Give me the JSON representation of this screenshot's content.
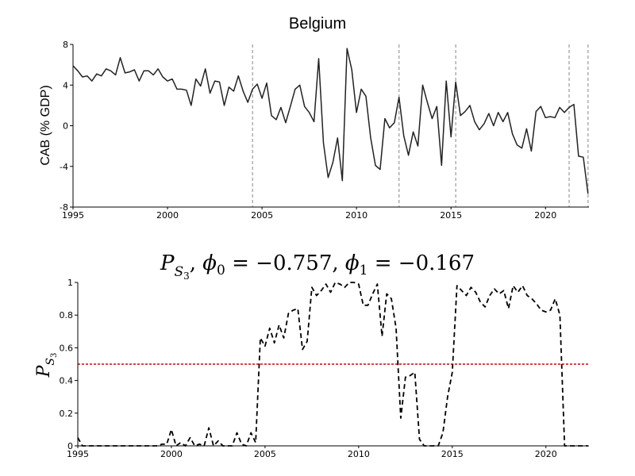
{
  "chart_data": [
    {
      "type": "line",
      "title": "Belgium",
      "ylabel": "CAB (% GDP)",
      "xlim": [
        1995,
        2022.3
      ],
      "ylim": [
        -8,
        8
      ],
      "xticks": [
        1995,
        2000,
        2005,
        2010,
        2015,
        2020
      ],
      "yticks": [
        -8,
        -4,
        0,
        4,
        8
      ],
      "vlines": [
        2004.5,
        2012.25,
        2015.25,
        2021.25,
        2022.25
      ],
      "series": [
        {
          "x": [
            1995.0,
            1995.25,
            1995.5,
            1995.75,
            1996.0,
            1996.25,
            1996.5,
            1996.75,
            1997.0,
            1997.25,
            1997.5,
            1997.75,
            1998.0,
            1998.25,
            1998.5,
            1998.75,
            1999.0,
            1999.25,
            1999.5,
            1999.75,
            2000.0,
            2000.25,
            2000.5,
            2000.75,
            2001.0,
            2001.25,
            2001.5,
            2001.75,
            2002.0,
            2002.25,
            2002.5,
            2002.75,
            2003.0,
            2003.25,
            2003.5,
            2003.75,
            2004.0,
            2004.25,
            2004.5,
            2004.75,
            2005.0,
            2005.25,
            2005.5,
            2005.75,
            2006.0,
            2006.25,
            2006.5,
            2006.75,
            2007.0,
            2007.25,
            2007.5,
            2007.75,
            2008.0,
            2008.25,
            2008.5,
            2008.75,
            2009.0,
            2009.25,
            2009.5,
            2009.75,
            2010.0,
            2010.25,
            2010.5,
            2010.75,
            2011.0,
            2011.25,
            2011.5,
            2011.75,
            2012.0,
            2012.25,
            2012.5,
            2012.75,
            2013.0,
            2013.25,
            2013.5,
            2013.75,
            2014.0,
            2014.25,
            2014.5,
            2014.75,
            2015.0,
            2015.25,
            2015.5,
            2015.75,
            2016.0,
            2016.25,
            2016.5,
            2016.75,
            2017.0,
            2017.25,
            2017.5,
            2017.75,
            2018.0,
            2018.25,
            2018.5,
            2018.75,
            2019.0,
            2019.25,
            2019.5,
            2019.75,
            2020.0,
            2020.25,
            2020.5,
            2020.75,
            2021.0,
            2021.25,
            2021.5,
            2021.75,
            2022.0,
            2022.25
          ],
          "y": [
            5.9,
            5.4,
            4.8,
            4.9,
            4.4,
            5.1,
            4.9,
            5.6,
            5.4,
            5.0,
            6.7,
            5.2,
            5.3,
            5.5,
            4.4,
            5.4,
            5.4,
            5.0,
            5.6,
            4.8,
            4.4,
            4.6,
            3.6,
            3.6,
            3.5,
            2.0,
            4.6,
            3.9,
            5.6,
            3.2,
            4.4,
            4.3,
            2.0,
            3.8,
            3.4,
            4.9,
            3.4,
            2.3,
            3.6,
            4.1,
            2.7,
            4.2,
            1.0,
            0.6,
            1.8,
            0.3,
            1.9,
            3.6,
            4.0,
            1.9,
            1.3,
            0.4,
            6.6,
            -1.7,
            -5.1,
            -3.6,
            -1.2,
            -5.4,
            7.6,
            5.5,
            1.3,
            3.6,
            2.9,
            -1.2,
            -3.9,
            -4.3,
            0.7,
            -0.2,
            0.3,
            2.8,
            -1.0,
            -2.9,
            -0.6,
            -2.0,
            4.0,
            2.3,
            0.7,
            1.9,
            -3.9,
            4.4,
            -1.1,
            4.3,
            1.0,
            1.4,
            2.0,
            0.4,
            -0.4,
            0.2,
            1.2,
            0.0,
            1.3,
            0.4,
            1.3,
            -0.8,
            -1.9,
            -2.2,
            -0.3,
            -2.5,
            1.4,
            1.9,
            0.8,
            0.9,
            0.8,
            1.8,
            1.3,
            1.8,
            2.1,
            -3.0,
            -3.1,
            -6.7
          ]
        }
      ]
    },
    {
      "type": "line",
      "title": "P_{S_3}, φ_0 = −0.757, φ_1 = −0.167",
      "ylabel": "P_{S_3}",
      "xlim": [
        1995,
        2022.3
      ],
      "ylim": [
        0,
        1
      ],
      "xticks": [
        1995,
        2000,
        2005,
        2010,
        2015,
        2020
      ],
      "yticks": [
        0,
        0.2,
        0.4,
        0.6,
        0.8,
        1
      ],
      "threshold": {
        "y": 0.5,
        "color": "#e00000"
      },
      "series": [
        {
          "style": "dashed",
          "x": [
            1995.0,
            1995.25,
            1995.5,
            1995.75,
            1996.0,
            1996.25,
            1996.5,
            1996.75,
            1997.0,
            1997.25,
            1997.5,
            1997.75,
            1998.0,
            1998.25,
            1998.5,
            1998.75,
            1999.0,
            1999.25,
            1999.5,
            1999.75,
            2000.0,
            2000.25,
            2000.5,
            2000.75,
            2001.0,
            2001.25,
            2001.5,
            2001.75,
            2002.0,
            2002.25,
            2002.5,
            2002.75,
            2003.0,
            2003.25,
            2003.5,
            2003.75,
            2004.0,
            2004.25,
            2004.5,
            2004.75,
            2005.0,
            2005.25,
            2005.5,
            2005.75,
            2006.0,
            2006.25,
            2006.5,
            2006.75,
            2007.0,
            2007.25,
            2007.5,
            2007.75,
            2008.0,
            2008.25,
            2008.5,
            2008.75,
            2009.0,
            2009.25,
            2009.5,
            2009.75,
            2010.0,
            2010.25,
            2010.5,
            2010.75,
            2011.0,
            2011.25,
            2011.5,
            2011.75,
            2012.0,
            2012.25,
            2012.5,
            2012.75,
            2013.0,
            2013.25,
            2013.5,
            2013.75,
            2014.0,
            2014.25,
            2014.5,
            2014.75,
            2015.0,
            2015.25,
            2015.5,
            2015.75,
            2016.0,
            2016.25,
            2016.5,
            2016.75,
            2017.0,
            2017.25,
            2017.5,
            2017.75,
            2018.0,
            2018.25,
            2018.5,
            2018.75,
            2019.0,
            2019.25,
            2019.5,
            2019.75,
            2020.0,
            2020.25,
            2020.5,
            2020.75,
            2021.0,
            2021.25,
            2021.5,
            2021.75,
            2022.0,
            2022.25
          ],
          "y": [
            0.05,
            0.0,
            0.0,
            0.0,
            0.0,
            0.0,
            0.0,
            0.0,
            0.0,
            0.0,
            0.0,
            0.0,
            0.0,
            0.0,
            0.0,
            0.0,
            0.0,
            0.0,
            0.01,
            0.01,
            0.1,
            0.0,
            0.02,
            0.0,
            0.05,
            0.0,
            0.01,
            0.0,
            0.11,
            0.0,
            0.03,
            0.0,
            0.0,
            0.0,
            0.08,
            0.01,
            0.0,
            0.08,
            0.02,
            0.66,
            0.61,
            0.72,
            0.63,
            0.74,
            0.66,
            0.81,
            0.83,
            0.84,
            0.59,
            0.64,
            0.97,
            0.92,
            0.95,
            0.99,
            0.94,
            1.0,
            0.99,
            0.97,
            1.0,
            1.0,
            0.99,
            0.86,
            0.86,
            0.93,
            0.99,
            0.67,
            0.93,
            0.9,
            0.72,
            0.17,
            0.42,
            0.43,
            0.45,
            0.04,
            0.0,
            0.0,
            0.0,
            0.0,
            0.08,
            0.3,
            0.45,
            0.98,
            0.95,
            0.92,
            0.97,
            0.94,
            0.88,
            0.85,
            0.92,
            0.96,
            0.93,
            0.95,
            0.84,
            0.98,
            0.94,
            0.98,
            0.92,
            0.9,
            0.87,
            0.83,
            0.82,
            0.83,
            0.9,
            0.8,
            0.0,
            0.0,
            0.0,
            0.0,
            0.0,
            0.0
          ]
        }
      ]
    }
  ]
}
